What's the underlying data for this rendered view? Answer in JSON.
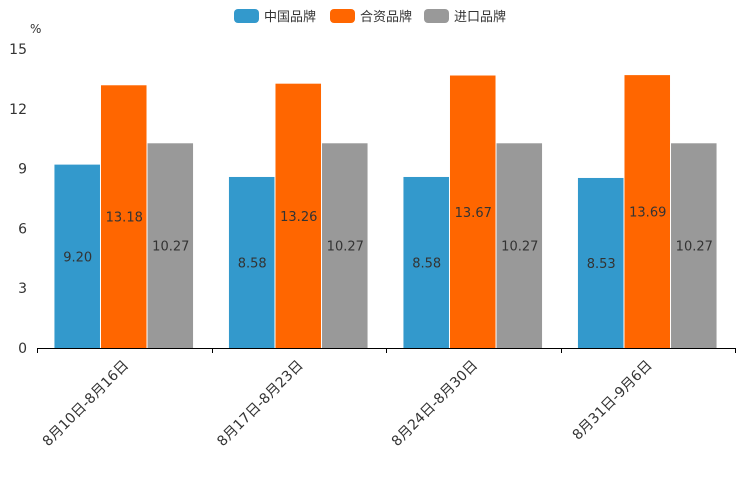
{
  "chart_data": {
    "type": "bar",
    "title": "",
    "ylabel": "%",
    "xlabel": "",
    "ylim": [
      0,
      15
    ],
    "yticks": [
      0,
      3,
      6,
      9,
      12,
      15
    ],
    "categories": [
      "8月10日-8月16日",
      "8月17日-8月23日",
      "8月24日-8月30日",
      "8月31日-9月6日"
    ],
    "series": [
      {
        "name": "中国品牌",
        "color": "#3399cc",
        "values": [
          9.2,
          8.58,
          8.58,
          8.53
        ],
        "labels": [
          "9.20",
          "8.58",
          "8.58",
          "8.53"
        ]
      },
      {
        "name": "合资品牌",
        "color": "#ff6600",
        "values": [
          13.18,
          13.26,
          13.67,
          13.69
        ],
        "labels": [
          "13.18",
          "13.26",
          "13.67",
          "13.69"
        ]
      },
      {
        "name": "进口品牌",
        "color": "#999999",
        "values": [
          10.27,
          10.27,
          10.27,
          10.27
        ],
        "labels": [
          "10.27",
          "10.27",
          "10.27",
          "10.27"
        ]
      }
    ],
    "legend_position": "top-center",
    "grid": false
  }
}
